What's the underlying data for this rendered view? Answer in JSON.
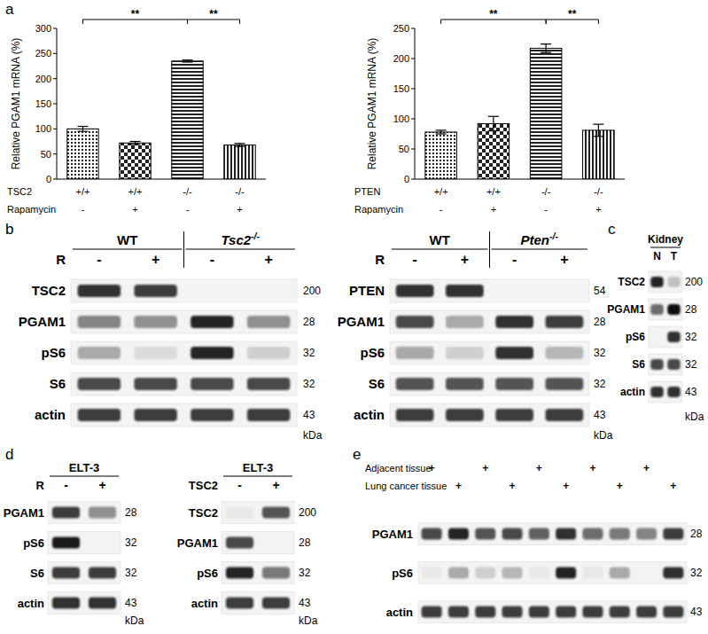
{
  "panel_labels": [
    "a",
    "b",
    "c",
    "d",
    "e"
  ],
  "chart_data": [
    {
      "type": "bar",
      "y_label": "Relative PGAM1 mRNA (%)",
      "values": [
        100,
        72,
        235,
        68
      ],
      "errors": [
        5,
        3,
        2,
        3
      ],
      "color": "#000000",
      "ylim": [
        0,
        300
      ],
      "yticks": [
        0,
        50,
        100,
        150,
        200,
        250,
        300
      ],
      "conditions": [
        {
          "name": "TSC2",
          "values": [
            "+/+",
            "+/+",
            "-/-",
            "-/-"
          ]
        },
        {
          "name": "Rapamycin",
          "values": [
            "-",
            "+",
            "-",
            "+"
          ]
        }
      ],
      "significance": [
        {
          "from": 0,
          "to": 2,
          "label": "**"
        },
        {
          "from": 2,
          "to": 3,
          "label": "**"
        }
      ]
    },
    {
      "type": "bar",
      "y_label": "Relative PGAM1 mRNA (%)",
      "values": [
        78,
        92,
        217,
        81
      ],
      "errors": [
        3,
        12,
        7,
        10
      ],
      "color": "#000000",
      "ylim": [
        0,
        250
      ],
      "yticks": [
        0,
        50,
        100,
        150,
        200,
        250
      ],
      "conditions": [
        {
          "name": "PTEN",
          "values": [
            "+/+",
            "+/+",
            "-/-",
            "-/-"
          ]
        },
        {
          "name": "Rapamycin",
          "values": [
            "-",
            "+",
            "-",
            "+"
          ]
        }
      ],
      "significance": [
        {
          "from": 0,
          "to": 2,
          "label": "**"
        },
        {
          "from": 2,
          "to": 3,
          "label": "**"
        }
      ]
    }
  ],
  "blots": [
    {
      "header": [
        {
          "text": "WT",
          "lanes": 2
        },
        {
          "text": "Tsc2",
          "sup": "-/-",
          "lanes": 2
        }
      ],
      "treatments": [
        {
          "label": "R",
          "values": [
            "-",
            "+",
            "-",
            "+"
          ]
        }
      ],
      "rows": [
        {
          "name": "TSC2",
          "kda": 200,
          "intensities": [
            0.85,
            0.8,
            0,
            0
          ]
        },
        {
          "name": "PGAM1",
          "kda": 28,
          "intensities": [
            0.5,
            0.45,
            0.9,
            0.45
          ]
        },
        {
          "name": "pS6",
          "kda": 32,
          "intensities": [
            0.3,
            0.1,
            0.9,
            0.15
          ]
        },
        {
          "name": "S6",
          "kda": 32,
          "intensities": [
            0.75,
            0.75,
            0.75,
            0.75
          ]
        },
        {
          "name": "actin",
          "kda": 43,
          "intensities": [
            0.8,
            0.8,
            0.8,
            0.8
          ]
        }
      ],
      "unit": "kDa"
    },
    {
      "header": [
        {
          "text": "WT",
          "lanes": 2
        },
        {
          "text": "Pten",
          "sup": "-/-",
          "lanes": 2
        }
      ],
      "treatments": [
        {
          "label": "R",
          "values": [
            "-",
            "+",
            "-",
            "+"
          ]
        }
      ],
      "rows": [
        {
          "name": "PTEN",
          "kda": 54,
          "intensities": [
            0.85,
            0.85,
            0,
            0
          ]
        },
        {
          "name": "PGAM1",
          "kda": 28,
          "intensities": [
            0.75,
            0.3,
            0.85,
            0.8
          ]
        },
        {
          "name": "pS6",
          "kda": 32,
          "intensities": [
            0.35,
            0.15,
            0.85,
            0.25
          ]
        },
        {
          "name": "S6",
          "kda": 32,
          "intensities": [
            0.7,
            0.7,
            0.7,
            0.7
          ]
        },
        {
          "name": "actin",
          "kda": 43,
          "intensities": [
            0.8,
            0.8,
            0.8,
            0.8
          ]
        }
      ],
      "unit": "kDa"
    },
    {
      "header": [
        {
          "text": "Kidney",
          "lanes": 2
        }
      ],
      "lane_labels": [
        "N",
        "T"
      ],
      "rows": [
        {
          "name": "TSC2",
          "kda": 200,
          "intensities": [
            0.9,
            0.2
          ]
        },
        {
          "name": "PGAM1",
          "kda": 28,
          "intensities": [
            0.6,
            1.0
          ]
        },
        {
          "name": "pS6",
          "kda": 32,
          "intensities": [
            0,
            0.85
          ]
        },
        {
          "name": "S6",
          "kda": 32,
          "intensities": [
            0.75,
            0.75
          ]
        },
        {
          "name": "actin",
          "kda": 43,
          "intensities": [
            0.85,
            0.85
          ]
        }
      ],
      "unit": "kDa"
    },
    {
      "header": [
        {
          "text": "ELT-3",
          "lanes": 2
        }
      ],
      "treatments": [
        {
          "label": "R",
          "values": [
            "-",
            "+"
          ]
        }
      ],
      "rows": [
        {
          "name": "PGAM1",
          "kda": 28,
          "intensities": [
            0.8,
            0.45
          ]
        },
        {
          "name": "pS6",
          "kda": 32,
          "intensities": [
            0.95,
            0
          ]
        },
        {
          "name": "S6",
          "kda": 32,
          "intensities": [
            0.8,
            0.8
          ]
        },
        {
          "name": "actin",
          "kda": 43,
          "intensities": [
            0.85,
            0.85
          ]
        }
      ],
      "unit": "kDa"
    },
    {
      "header": [
        {
          "text": "ELT-3",
          "lanes": 2
        }
      ],
      "treatments": [
        {
          "label": "TSC2",
          "values": [
            "-",
            "+"
          ]
        }
      ],
      "rows": [
        {
          "name": "TSC2",
          "kda": 200,
          "intensities": [
            0.05,
            0.7
          ]
        },
        {
          "name": "PGAM1",
          "kda": 28,
          "intensities": [
            0.75,
            0
          ]
        },
        {
          "name": "pS6",
          "kda": 32,
          "intensities": [
            0.9,
            0.55
          ]
        },
        {
          "name": "actin",
          "kda": 43,
          "intensities": [
            0.8,
            0.8
          ]
        }
      ],
      "unit": "kDa"
    },
    {
      "treatments": [
        {
          "label": "Adjacent tissue",
          "values": [
            "+",
            null,
            "+",
            null,
            "+",
            null,
            "+",
            null,
            "+",
            null
          ]
        },
        {
          "label": "Lung cancer tissue",
          "values": [
            null,
            "+",
            null,
            "+",
            null,
            "+",
            null,
            "+",
            null,
            "+"
          ]
        }
      ],
      "rows": [
        {
          "name": "PGAM1",
          "kda": 28,
          "intensities": [
            0.75,
            0.9,
            0.7,
            0.75,
            0.65,
            0.85,
            0.6,
            0.55,
            0.5,
            0.8
          ]
        },
        {
          "name": "pS6",
          "kda": 32,
          "intensities": [
            0.05,
            0.3,
            0.15,
            0.25,
            0.05,
            0.9,
            0.05,
            0.3,
            0,
            0.85
          ]
        },
        {
          "name": "actin",
          "kda": 43,
          "intensities": [
            0.8,
            0.8,
            0.8,
            0.8,
            0.8,
            0.8,
            0.8,
            0.8,
            0.8,
            0.8
          ]
        }
      ]
    }
  ]
}
